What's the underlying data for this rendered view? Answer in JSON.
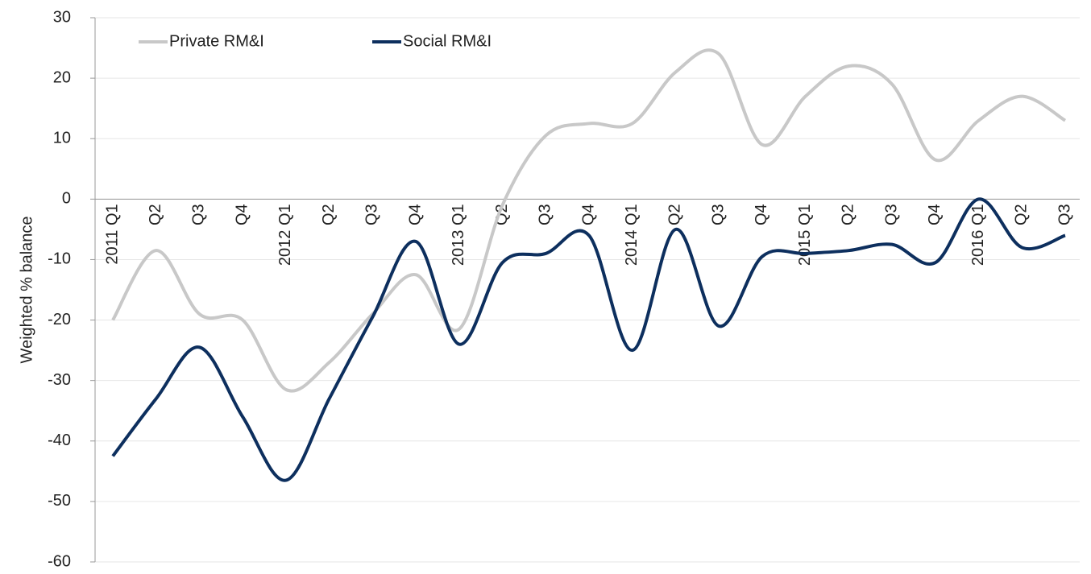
{
  "chart_data": {
    "type": "line",
    "y_label": "Weighted % balance",
    "categories": [
      "2011 Q1",
      "Q2",
      "Q3",
      "Q4",
      "2012 Q1",
      "Q2",
      "Q3",
      "Q4",
      "2013 Q1",
      "Q2",
      "Q3",
      "Q4",
      "2014 Q1",
      "Q2",
      "Q3",
      "Q4",
      "2015 Q1",
      "Q2",
      "Q3",
      "Q4",
      "2016 Q1",
      "Q2",
      "Q3"
    ],
    "series": [
      {
        "name": "Private RM&I",
        "color": "#c8c8c8",
        "values": [
          -20,
          -8.5,
          -19,
          -20,
          -31.5,
          -27,
          -19,
          -12.5,
          -21.5,
          -1,
          10.5,
          12.5,
          12.5,
          21,
          24,
          9,
          17,
          22,
          19,
          6.5,
          13,
          17,
          13
        ]
      },
      {
        "name": "Social RM&I",
        "color": "#0d2f5e",
        "values": [
          -42.5,
          -33,
          -24.5,
          -36,
          -46.5,
          -33,
          -19.5,
          -7,
          -24,
          -10.5,
          -9,
          -6,
          -25,
          -5,
          -21,
          -9.5,
          -9,
          -8.5,
          -7.5,
          -10.5,
          0,
          -8,
          -6
        ]
      }
    ],
    "ylim": [
      -60,
      30
    ],
    "yticks": [
      -60,
      -50,
      -40,
      -30,
      -20,
      -10,
      0,
      10,
      20,
      30
    ],
    "grid": true,
    "legend": "top-left"
  }
}
